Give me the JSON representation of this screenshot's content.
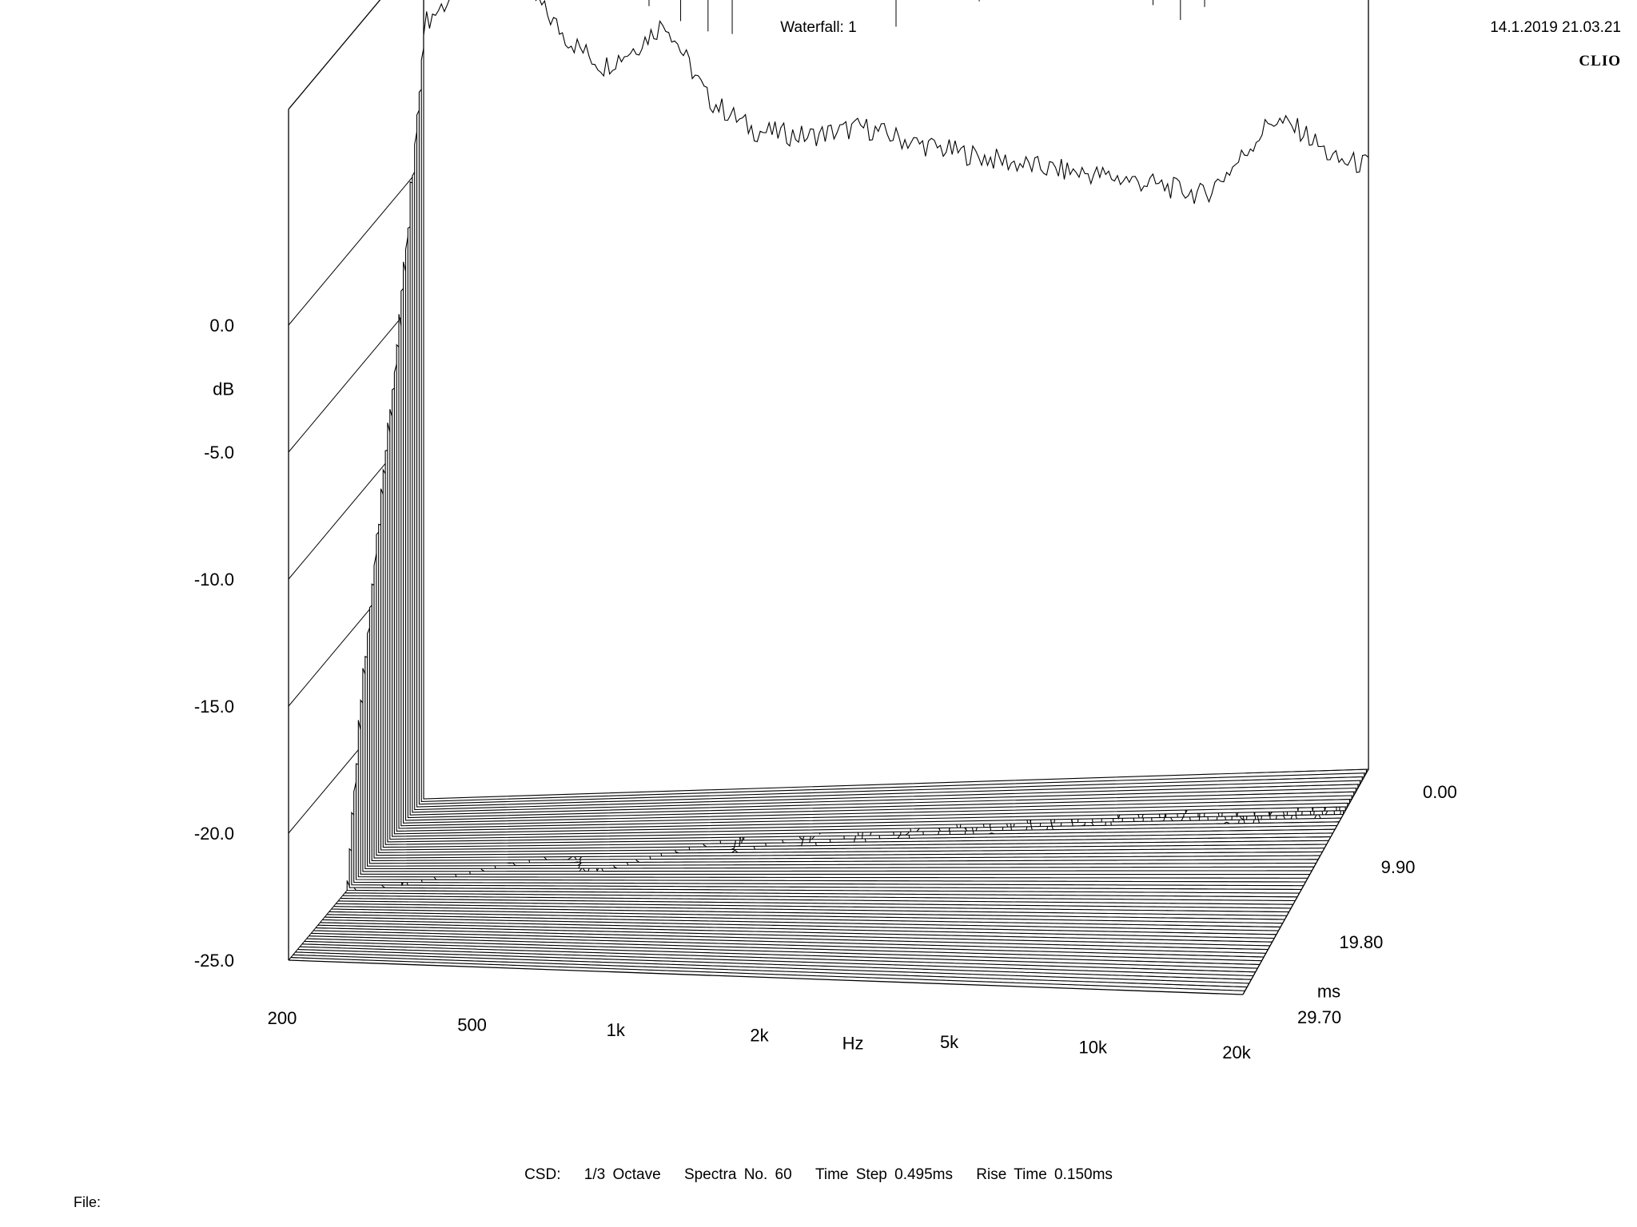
{
  "header": {
    "title": "Waterfall: 1",
    "timestamp": "14.1.2019 21.03.21",
    "brand": "CLIO"
  },
  "footer": {
    "mode": "CSD:",
    "smoothing": "1/3 Octave",
    "spectra": "Spectra No. 60",
    "time_step": "Time Step 0.495ms",
    "rise_time": "Rise Time 0.150ms",
    "file_label": "File:"
  },
  "chart_data": {
    "type": "waterfall",
    "title": "Waterfall: 1",
    "x_axis": {
      "label": "Hz",
      "scale": "log",
      "range": [
        200,
        20000
      ],
      "ticks": [
        {
          "value": 200,
          "label": "200"
        },
        {
          "value": 500,
          "label": "500"
        },
        {
          "value": 1000,
          "label": "1k"
        },
        {
          "value": 2000,
          "label": "2k"
        },
        {
          "value": 5000,
          "label": "5k"
        },
        {
          "value": 10000,
          "label": "10k"
        },
        {
          "value": 20000,
          "label": "20k"
        }
      ]
    },
    "y_axis": {
      "label": "dB",
      "range": [
        -25,
        0
      ],
      "ticks": [
        {
          "value": 0,
          "label": "0.0"
        },
        {
          "value": -5,
          "label": "-5.0"
        },
        {
          "value": -10,
          "label": "-10.0"
        },
        {
          "value": -15,
          "label": "-15.0"
        },
        {
          "value": -20,
          "label": "-20.0"
        },
        {
          "value": -25,
          "label": "-25.0"
        }
      ]
    },
    "z_axis": {
      "label": "ms",
      "range": [
        0,
        29.7
      ],
      "ticks": [
        {
          "value": 0,
          "label": "0.00"
        },
        {
          "value": 9.9,
          "label": "9.90"
        },
        {
          "value": 19.8,
          "label": "19.80"
        },
        {
          "value": 29.7,
          "label": "29.70"
        }
      ]
    },
    "spectra_count": 60,
    "time_step_ms": 0.495,
    "rise_time_ms": 0.15,
    "smoothing": "1/3 Octave",
    "first_spectrum_points": [
      {
        "hz": 200,
        "db": 5.5
      },
      {
        "hz": 260,
        "db": 7.5
      },
      {
        "hz": 330,
        "db": 6.8
      },
      {
        "hz": 400,
        "db": 4.8
      },
      {
        "hz": 480,
        "db": 3.6
      },
      {
        "hz": 560,
        "db": 4.3
      },
      {
        "hz": 650,
        "db": 5.3
      },
      {
        "hz": 800,
        "db": 2.2
      },
      {
        "hz": 1000,
        "db": 0.9
      },
      {
        "hz": 1300,
        "db": 0.6
      },
      {
        "hz": 1700,
        "db": 0.9
      },
      {
        "hz": 2200,
        "db": 0.2
      },
      {
        "hz": 3000,
        "db": -0.4
      },
      {
        "hz": 4000,
        "db": -0.9
      },
      {
        "hz": 5500,
        "db": -1.3
      },
      {
        "hz": 7000,
        "db": -1.7
      },
      {
        "hz": 9000,
        "db": -2.2
      },
      {
        "hz": 10500,
        "db": -1.0
      },
      {
        "hz": 12500,
        "db": 0.7
      },
      {
        "hz": 14500,
        "db": 0.2
      },
      {
        "hz": 17000,
        "db": -1.0
      },
      {
        "hz": 20000,
        "db": -1.2
      }
    ]
  }
}
